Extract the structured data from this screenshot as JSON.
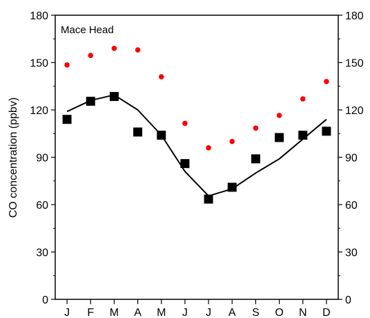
{
  "chart_data": {
    "type": "line",
    "categories": [
      "J",
      "F",
      "M",
      "A",
      "M",
      "J",
      "J",
      "A",
      "S",
      "O",
      "N",
      "D"
    ],
    "ylabel": "CO concentration (ppbv)",
    "annotation": "Mace Head",
    "ylim": [
      0,
      180
    ],
    "yticks": [
      0,
      30,
      60,
      90,
      120,
      150,
      180
    ],
    "grid": false,
    "series": [
      {
        "marker": "circle",
        "color": "#ff0000",
        "values": [
          148.5,
          154.5,
          159,
          158,
          141,
          111.5,
          96,
          100,
          108.5,
          116.5,
          127,
          138
        ]
      },
      {
        "marker": "line",
        "color": "#000000",
        "values": [
          119,
          126,
          129.5,
          120,
          104,
          81,
          65.5,
          70,
          80,
          89,
          101.5,
          114
        ]
      },
      {
        "marker": "square",
        "color": "#000000",
        "values": [
          114,
          125.5,
          128.5,
          106,
          104,
          86,
          63.5,
          71,
          89,
          102.5,
          104,
          106.5
        ]
      }
    ]
  }
}
